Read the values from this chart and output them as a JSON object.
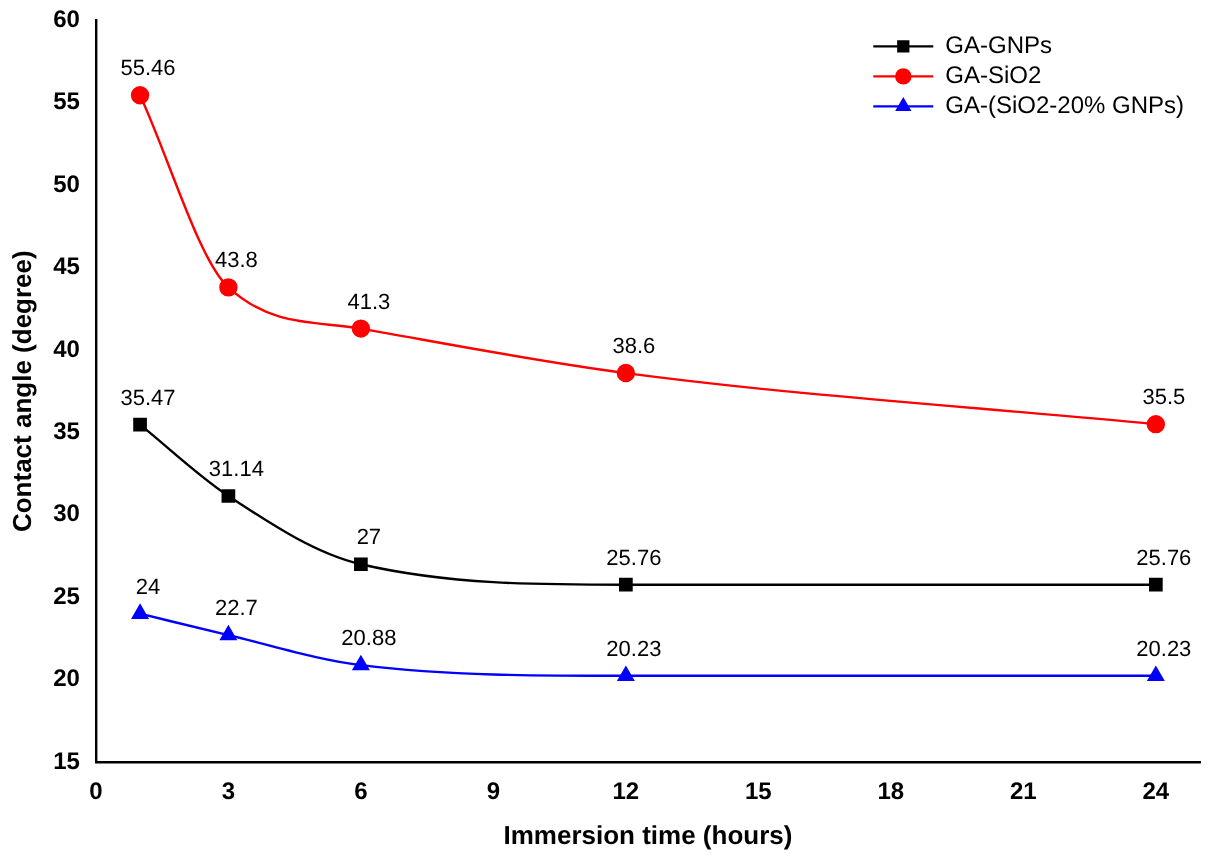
{
  "chart_data": {
    "type": "line",
    "xlabel": "Immersion time (hours)",
    "ylabel": "Contact angle (degree)",
    "x": [
      1,
      3,
      6,
      12,
      24
    ],
    "series": [
      {
        "name": "GA-GNPs",
        "color": "#000000",
        "marker": "square",
        "values": [
          35.47,
          31.14,
          27,
          25.76,
          25.76
        ]
      },
      {
        "name": "GA-SiO2",
        "color": "#ff0000",
        "marker": "circle",
        "values": [
          55.46,
          43.8,
          41.3,
          38.6,
          35.5
        ]
      },
      {
        "name": "GA-(SiO2-20% GNPs)",
        "color": "#0000ff",
        "marker": "triangle",
        "values": [
          24,
          22.7,
          20.88,
          20.23,
          20.23
        ]
      }
    ],
    "xlim": [
      0,
      25
    ],
    "xticks": [
      0,
      3,
      6,
      9,
      12,
      15,
      18,
      21,
      24
    ],
    "ylim": [
      15,
      60
    ],
    "yticks": [
      15,
      20,
      25,
      30,
      35,
      40,
      45,
      50,
      55,
      60
    ],
    "data_labels": true,
    "legend": "top right",
    "grid": false
  }
}
